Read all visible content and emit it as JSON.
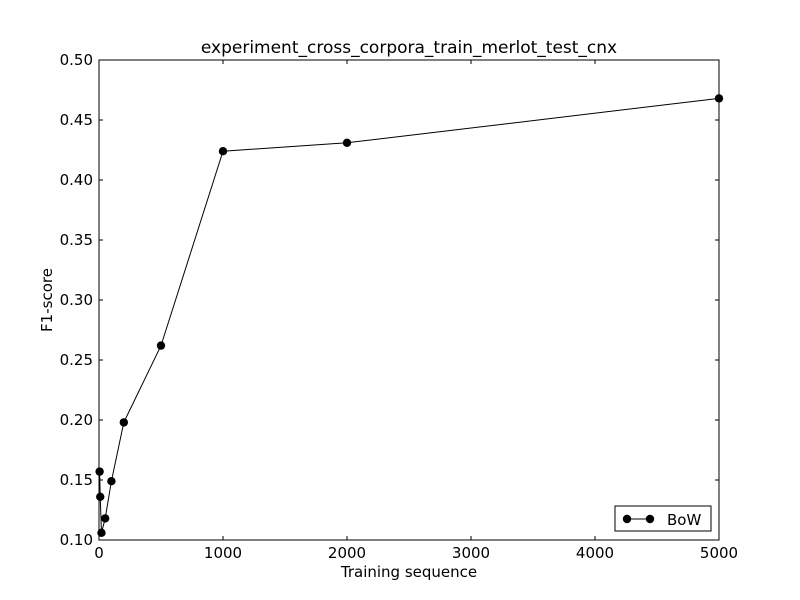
{
  "chart_data": {
    "type": "line",
    "title": "experiment_cross_corpora_train_merlot_test_cnx",
    "xlabel": "Training sequence",
    "ylabel": "F1-score",
    "xlim": [
      0,
      5000
    ],
    "ylim": [
      0.1,
      0.5
    ],
    "xticks": [
      0,
      1000,
      2000,
      3000,
      4000,
      5000
    ],
    "xtick_labels": [
      "0",
      "1000",
      "2000",
      "3000",
      "4000",
      "5000"
    ],
    "yticks": [
      0.1,
      0.15,
      0.2,
      0.25,
      0.3,
      0.35,
      0.4,
      0.45,
      0.5
    ],
    "ytick_labels": [
      "0.10",
      "0.15",
      "0.20",
      "0.25",
      "0.30",
      "0.35",
      "0.40",
      "0.45",
      "0.50"
    ],
    "grid": false,
    "legend_position": "lower-right",
    "series": [
      {
        "name": "BoW",
        "color": "#000000",
        "marker": "circle",
        "x": [
          5,
          10,
          20,
          50,
          100,
          200,
          500,
          1000,
          2000,
          5000
        ],
        "y": [
          0.157,
          0.136,
          0.106,
          0.118,
          0.149,
          0.198,
          0.262,
          0.424,
          0.431,
          0.468
        ]
      }
    ]
  }
}
